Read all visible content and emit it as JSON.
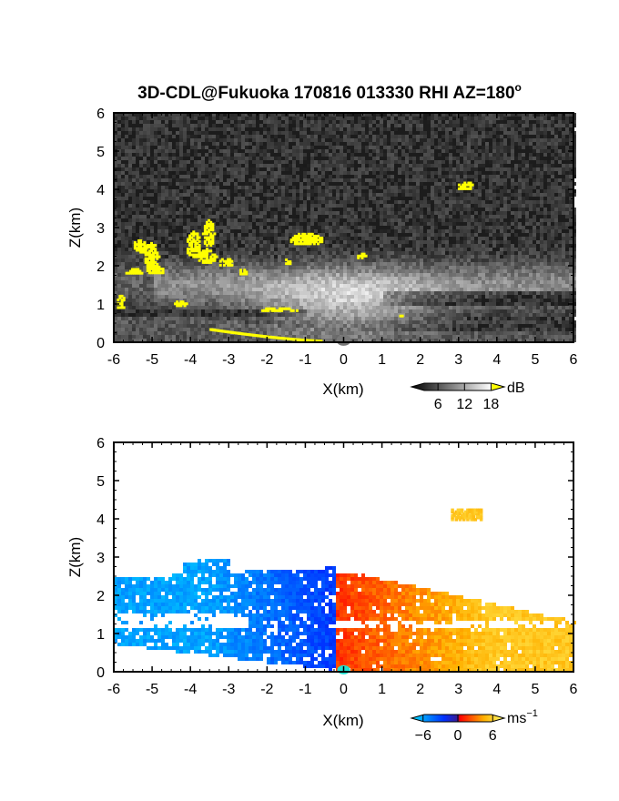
{
  "chart_data": [
    {
      "type": "heatmap",
      "title": "3D-CDL@Fukuoka 170816 013330 RHI AZ=180",
      "title_superscript": "o",
      "xlabel": "X(km)",
      "ylabel": "Z(km)",
      "xlim": [
        -6,
        6
      ],
      "ylim": [
        0,
        6
      ],
      "x_ticks": [
        "-6",
        "-5",
        "-4",
        "-3",
        "-2",
        "-1",
        "0",
        "1",
        "2",
        "3",
        "4",
        "5",
        "6"
      ],
      "y_ticks": [
        "0",
        "1",
        "2",
        "3",
        "4",
        "5",
        "6"
      ],
      "colorbar": {
        "label": "dB",
        "ticks": [
          "6",
          "12",
          "18"
        ],
        "range": [
          0,
          21
        ],
        "colors": [
          "#000000",
          "#ffffff",
          "#ffff00"
        ]
      },
      "highlight_color": "#ffff00",
      "background_color": "#1c1c1c",
      "grid": false
    },
    {
      "type": "heatmap",
      "xlabel": "X(km)",
      "ylabel": "Z(km)",
      "xlim": [
        -6,
        6
      ],
      "ylim": [
        0,
        6
      ],
      "x_ticks": [
        "-6",
        "-5",
        "-4",
        "-3",
        "-2",
        "-1",
        "0",
        "1",
        "2",
        "3",
        "4",
        "5",
        "6"
      ],
      "y_ticks": [
        "0",
        "1",
        "2",
        "3",
        "4",
        "5",
        "6"
      ],
      "colorbar": {
        "label": "ms",
        "label_superscript": "−1",
        "ticks": [
          "−6",
          "0",
          "6"
        ],
        "range": [
          -8,
          8
        ],
        "colors": [
          "#00e0ff",
          "#0030ff",
          "#ff0000",
          "#ffc000",
          "#ffff60"
        ]
      },
      "background_color": "#ffffff",
      "grid": false
    }
  ]
}
